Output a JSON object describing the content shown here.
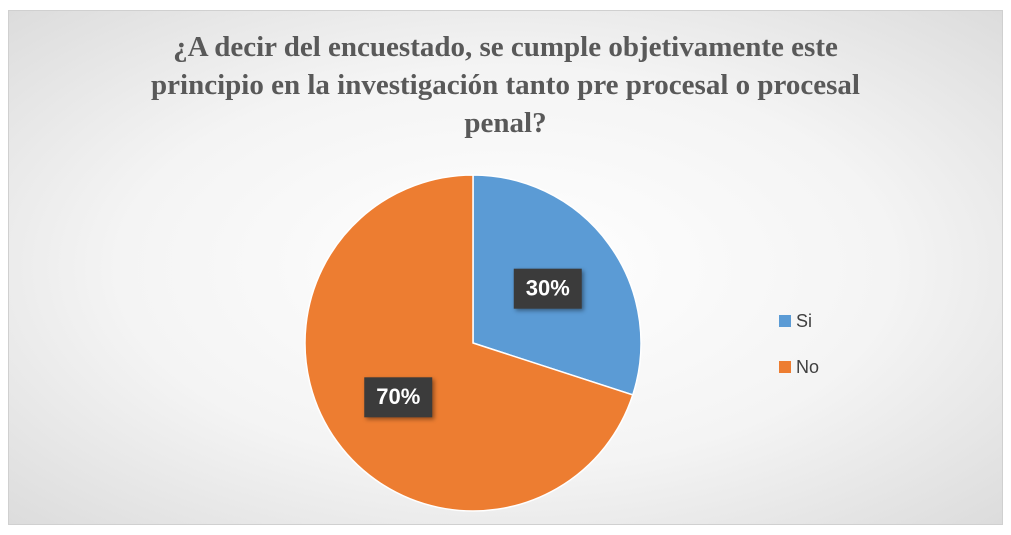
{
  "chart_data": {
    "type": "pie",
    "title": "¿A decir del encuestado, se cumple objetivamente este principio en la investigación tanto pre procesal o procesal penal?",
    "categories": [
      "Si",
      "No"
    ],
    "values": [
      30,
      70
    ],
    "value_labels": [
      "30%",
      "70%"
    ],
    "colors": [
      "#5b9bd5",
      "#ed7d31"
    ],
    "legend": "right"
  }
}
